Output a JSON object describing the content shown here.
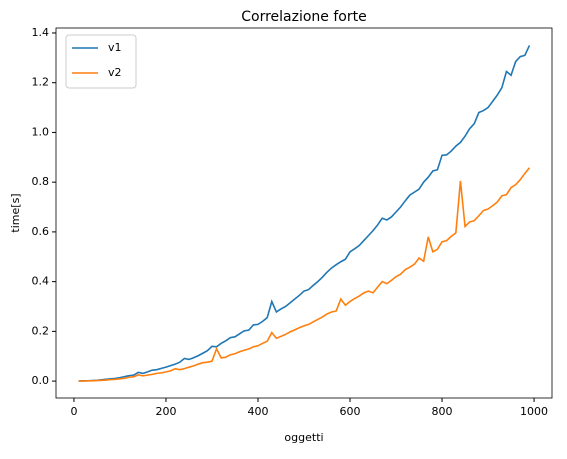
{
  "chart_data": {
    "type": "line",
    "title": "Correlazione forte",
    "x_label": "oggetti",
    "y_label": "time[s]",
    "x": [
      10,
      20,
      30,
      40,
      50,
      60,
      70,
      80,
      90,
      100,
      110,
      120,
      130,
      140,
      150,
      160,
      170,
      180,
      190,
      200,
      210,
      220,
      230,
      240,
      250,
      260,
      270,
      280,
      290,
      300,
      310,
      320,
      330,
      340,
      350,
      360,
      370,
      380,
      390,
      400,
      410,
      420,
      430,
      440,
      450,
      460,
      470,
      480,
      490,
      500,
      510,
      520,
      530,
      540,
      550,
      560,
      570,
      580,
      590,
      600,
      610,
      620,
      630,
      640,
      650,
      660,
      670,
      680,
      690,
      700,
      710,
      720,
      730,
      740,
      750,
      760,
      770,
      780,
      790,
      800,
      810,
      820,
      830,
      840,
      850,
      860,
      870,
      880,
      890,
      900,
      910,
      920,
      930,
      940,
      950,
      960,
      970,
      980,
      990
    ],
    "series": [
      {
        "name": "v1",
        "color": "#1f77b4",
        "values": [
          0.0,
          0.001,
          0.001,
          0.002,
          0.003,
          0.005,
          0.007,
          0.009,
          0.011,
          0.014,
          0.018,
          0.022,
          0.024,
          0.035,
          0.031,
          0.037,
          0.044,
          0.046,
          0.051,
          0.056,
          0.062,
          0.068,
          0.076,
          0.091,
          0.087,
          0.094,
          0.102,
          0.112,
          0.122,
          0.14,
          0.138,
          0.152,
          0.162,
          0.175,
          0.178,
          0.19,
          0.202,
          0.205,
          0.226,
          0.228,
          0.24,
          0.255,
          0.32,
          0.278,
          0.29,
          0.3,
          0.315,
          0.33,
          0.345,
          0.362,
          0.368,
          0.385,
          0.4,
          0.418,
          0.438,
          0.455,
          0.468,
          0.48,
          0.49,
          0.52,
          0.532,
          0.545,
          0.565,
          0.585,
          0.605,
          0.628,
          0.655,
          0.648,
          0.66,
          0.68,
          0.7,
          0.725,
          0.748,
          0.76,
          0.772,
          0.8,
          0.82,
          0.845,
          0.85,
          0.908,
          0.91,
          0.925,
          0.945,
          0.96,
          0.985,
          1.015,
          1.035,
          1.08,
          1.088,
          1.1,
          1.125,
          1.15,
          1.18,
          1.245,
          1.23,
          1.285,
          1.305,
          1.31,
          1.35
        ]
      },
      {
        "name": "v2",
        "color": "#ff7f0e",
        "values": [
          0.0,
          0.0,
          0.001,
          0.001,
          0.002,
          0.003,
          0.004,
          0.006,
          0.007,
          0.009,
          0.011,
          0.016,
          0.017,
          0.025,
          0.021,
          0.024,
          0.027,
          0.031,
          0.033,
          0.037,
          0.041,
          0.05,
          0.046,
          0.05,
          0.056,
          0.061,
          0.068,
          0.074,
          0.076,
          0.08,
          0.13,
          0.093,
          0.096,
          0.106,
          0.11,
          0.118,
          0.124,
          0.129,
          0.138,
          0.142,
          0.152,
          0.16,
          0.195,
          0.172,
          0.18,
          0.188,
          0.198,
          0.206,
          0.215,
          0.222,
          0.228,
          0.238,
          0.248,
          0.258,
          0.27,
          0.278,
          0.282,
          0.33,
          0.305,
          0.32,
          0.332,
          0.342,
          0.355,
          0.362,
          0.355,
          0.378,
          0.4,
          0.392,
          0.405,
          0.42,
          0.43,
          0.448,
          0.458,
          0.47,
          0.495,
          0.482,
          0.58,
          0.52,
          0.53,
          0.56,
          0.565,
          0.582,
          0.596,
          0.805,
          0.622,
          0.64,
          0.645,
          0.665,
          0.686,
          0.692,
          0.705,
          0.72,
          0.745,
          0.75,
          0.778,
          0.79,
          0.81,
          0.835,
          0.858
        ]
      }
    ],
    "xlim": [
      -39,
      1039
    ],
    "ylim": [
      -0.068,
      1.42
    ],
    "xticks": [
      0,
      200,
      400,
      600,
      800,
      1000
    ],
    "yticks": [
      {
        "value": 0.0,
        "label": "0.0"
      },
      0.2,
      0.4,
      0.6,
      0.8,
      {
        "value": 1.0,
        "label": "1.0"
      },
      1.2,
      1.4
    ],
    "grid": false,
    "legend": "upper left"
  }
}
